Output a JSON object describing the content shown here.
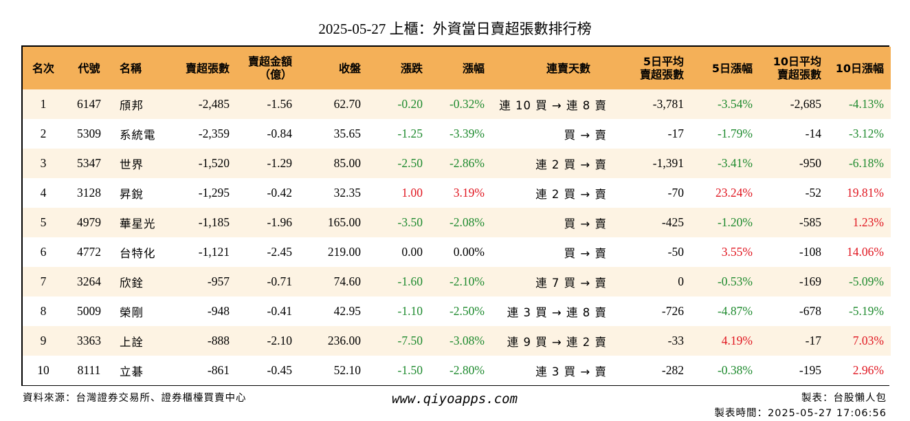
{
  "title": "2025-05-27 上櫃：外資當日賣超張數排行榜",
  "colors": {
    "header_bg": "#f4b058",
    "odd_row_bg": "#fdf3e3",
    "up": "#e0151f",
    "down": "#1e8a2e"
  },
  "headers": {
    "rank": "名次",
    "code": "代號",
    "name": "名稱",
    "sell_shares": "賣超張數",
    "sell_amount_l1": "賣超金額",
    "sell_amount_l2": "（億）",
    "close": "收盤",
    "change": "漲跌",
    "pct": "漲幅",
    "streak": "連賣天數",
    "avg5_l1": "5日平均",
    "avg5_l2": "賣超張數",
    "pct5": "5日漲幅",
    "avg10_l1": "10日平均",
    "avg10_l2": "賣超張數",
    "pct10": "10日漲幅"
  },
  "rows": [
    {
      "rank": "1",
      "code": "6147",
      "name": "頎邦",
      "sell_shares": "-2,485",
      "sell_amount": "-1.56",
      "close": "62.70",
      "change": "-0.20",
      "change_dir": "down",
      "pct": "-0.32%",
      "pct_dir": "down",
      "streak": "連 10 買 → 連 8 賣",
      "avg5": "-3,781",
      "pct5": "-3.54%",
      "pct5_dir": "down",
      "avg10": "-2,685",
      "pct10": "-4.13%",
      "pct10_dir": "down"
    },
    {
      "rank": "2",
      "code": "5309",
      "name": "系統電",
      "sell_shares": "-2,359",
      "sell_amount": "-0.84",
      "close": "35.65",
      "change": "-1.25",
      "change_dir": "down",
      "pct": "-3.39%",
      "pct_dir": "down",
      "streak": "買 → 賣",
      "avg5": "-17",
      "pct5": "-1.79%",
      "pct5_dir": "down",
      "avg10": "-14",
      "pct10": "-3.12%",
      "pct10_dir": "down"
    },
    {
      "rank": "3",
      "code": "5347",
      "name": "世界",
      "sell_shares": "-1,520",
      "sell_amount": "-1.29",
      "close": "85.00",
      "change": "-2.50",
      "change_dir": "down",
      "pct": "-2.86%",
      "pct_dir": "down",
      "streak": "連 2 買 → 賣",
      "avg5": "-1,391",
      "pct5": "-3.41%",
      "pct5_dir": "down",
      "avg10": "-950",
      "pct10": "-6.18%",
      "pct10_dir": "down"
    },
    {
      "rank": "4",
      "code": "3128",
      "name": "昇銳",
      "sell_shares": "-1,295",
      "sell_amount": "-0.42",
      "close": "32.35",
      "change": "1.00",
      "change_dir": "up",
      "pct": "3.19%",
      "pct_dir": "up",
      "streak": "連 2 買 → 賣",
      "avg5": "-70",
      "pct5": "23.24%",
      "pct5_dir": "up",
      "avg10": "-52",
      "pct10": "19.81%",
      "pct10_dir": "up"
    },
    {
      "rank": "5",
      "code": "4979",
      "name": "華星光",
      "sell_shares": "-1,185",
      "sell_amount": "-1.96",
      "close": "165.00",
      "change": "-3.50",
      "change_dir": "down",
      "pct": "-2.08%",
      "pct_dir": "down",
      "streak": "買 → 賣",
      "avg5": "-425",
      "pct5": "-1.20%",
      "pct5_dir": "down",
      "avg10": "-585",
      "pct10": "1.23%",
      "pct10_dir": "up"
    },
    {
      "rank": "6",
      "code": "4772",
      "name": "台特化",
      "sell_shares": "-1,121",
      "sell_amount": "-2.45",
      "close": "219.00",
      "change": "0.00",
      "change_dir": "flat",
      "pct": "0.00%",
      "pct_dir": "flat",
      "streak": "買 → 賣",
      "avg5": "-50",
      "pct5": "3.55%",
      "pct5_dir": "up",
      "avg10": "-108",
      "pct10": "14.06%",
      "pct10_dir": "up"
    },
    {
      "rank": "7",
      "code": "3264",
      "name": "欣銓",
      "sell_shares": "-957",
      "sell_amount": "-0.71",
      "close": "74.60",
      "change": "-1.60",
      "change_dir": "down",
      "pct": "-2.10%",
      "pct_dir": "down",
      "streak": "連 7 買 → 賣",
      "avg5": "0",
      "pct5": "-0.53%",
      "pct5_dir": "down",
      "avg10": "-169",
      "pct10": "-5.09%",
      "pct10_dir": "down"
    },
    {
      "rank": "8",
      "code": "5009",
      "name": "榮剛",
      "sell_shares": "-948",
      "sell_amount": "-0.41",
      "close": "42.95",
      "change": "-1.10",
      "change_dir": "down",
      "pct": "-2.50%",
      "pct_dir": "down",
      "streak": "連 3 買 → 連 8 賣",
      "avg5": "-726",
      "pct5": "-4.87%",
      "pct5_dir": "down",
      "avg10": "-678",
      "pct10": "-5.19%",
      "pct10_dir": "down"
    },
    {
      "rank": "9",
      "code": "3363",
      "name": "上詮",
      "sell_shares": "-888",
      "sell_amount": "-2.10",
      "close": "236.00",
      "change": "-7.50",
      "change_dir": "down",
      "pct": "-3.08%",
      "pct_dir": "down",
      "streak": "連 9 買 → 連 2 賣",
      "avg5": "-33",
      "pct5": "4.19%",
      "pct5_dir": "up",
      "avg10": "-17",
      "pct10": "7.03%",
      "pct10_dir": "up"
    },
    {
      "rank": "10",
      "code": "8111",
      "name": "立碁",
      "sell_shares": "-861",
      "sell_amount": "-0.45",
      "close": "52.10",
      "change": "-1.50",
      "change_dir": "down",
      "pct": "-2.80%",
      "pct_dir": "down",
      "streak": "連 3 買 → 賣",
      "avg5": "-282",
      "pct5": "-0.38%",
      "pct5_dir": "down",
      "avg10": "-195",
      "pct10": "2.96%",
      "pct10_dir": "up"
    }
  ],
  "footer": {
    "source": "資料來源：台灣證券交易所、證券櫃檯買賣中心",
    "website": "www.qiyoapps.com",
    "maker": "製表：台股懶人包",
    "made_time": "製表時間：2025-05-27 17:06:56"
  }
}
